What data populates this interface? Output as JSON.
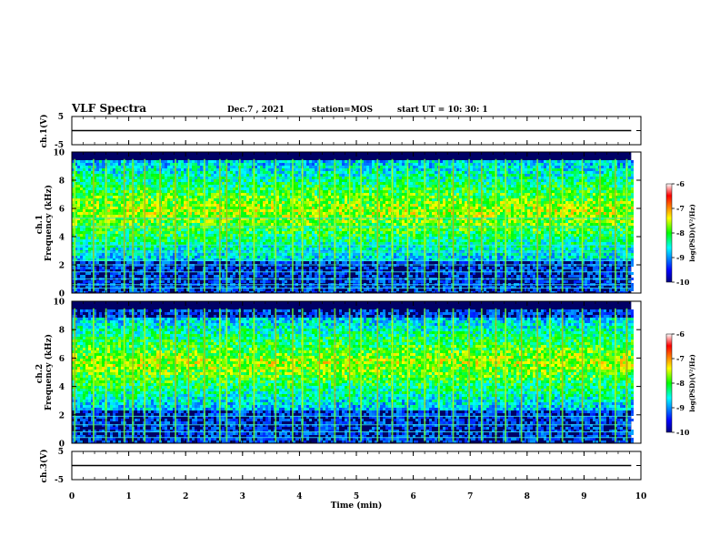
{
  "header": {
    "title": "VLF Spectra",
    "date": "Dec.7 , 2021",
    "station": "station=MOS",
    "start": "start  UT =   10: 30: 1"
  },
  "chart_data": [
    {
      "type": "line",
      "ylabel": "ch.1(V)",
      "ylim": [
        -5,
        5
      ],
      "yticks": [
        "5",
        "-5"
      ],
      "xlim": [
        0,
        10
      ],
      "series": [
        {
          "x": [
            0,
            9.83
          ],
          "y": [
            0,
            0
          ]
        }
      ]
    },
    {
      "type": "heatmap",
      "ylabel": "ch.1\nFrequency (kHz)",
      "ylim": [
        0,
        10
      ],
      "yticks": [
        "0",
        "2",
        "4",
        "6",
        "8",
        "10"
      ],
      "xlim": [
        0,
        10
      ],
      "data_extent_min": 9.83,
      "colorbar": {
        "label": "log(PSD)(V²/Hz)",
        "range": [
          -10,
          -6
        ],
        "ticks": [
          "-6",
          "-7",
          "-8",
          "-9",
          "-10"
        ]
      },
      "features": {
        "band_khz": [
          2.3,
          9.5
        ],
        "spectral_lines_khz": [
          0.35,
          0.6,
          1.0,
          1.5,
          2.0,
          2.3,
          2.9,
          3.4,
          4.7,
          5.3
        ],
        "bursts_min": [
          0.05,
          0.38,
          0.6,
          0.92,
          1.07,
          1.28,
          1.55,
          1.82,
          2.05,
          2.33,
          2.6,
          2.72,
          2.95,
          3.2,
          3.58,
          3.88,
          4.05,
          4.35,
          4.62,
          4.88,
          5.08,
          5.37,
          5.63,
          5.9,
          6.2,
          6.45,
          6.7,
          6.98,
          7.2,
          7.45,
          7.62,
          7.9,
          8.18,
          8.4,
          8.62,
          8.97,
          9.28,
          9.55,
          9.75
        ]
      }
    },
    {
      "type": "heatmap",
      "ylabel": "ch.2\nFrequency (kHz)",
      "ylim": [
        0,
        10
      ],
      "yticks": [
        "0",
        "2",
        "4",
        "6",
        "8",
        "10"
      ],
      "xlim": [
        0,
        10
      ],
      "data_extent_min": 9.83,
      "colorbar": {
        "label": "log(PSD)(V²/Hz)",
        "range": [
          -10,
          -6
        ],
        "ticks": [
          "-6",
          "-7",
          "-8",
          "-9",
          "-10"
        ]
      },
      "features": {
        "band_khz": [
          2.5,
          9.0
        ],
        "spectral_lines_khz": [
          0.4,
          0.8,
          1.3,
          1.9
        ],
        "bursts_min": [
          0.05,
          0.38,
          0.6,
          0.92,
          1.07,
          1.28,
          1.55,
          1.82,
          2.05,
          2.33,
          2.6,
          2.72,
          2.95,
          3.2,
          3.58,
          3.88,
          4.05,
          4.35,
          4.62,
          4.88,
          5.08,
          5.37,
          5.63,
          5.9,
          6.2,
          6.45,
          6.7,
          6.98,
          7.2,
          7.45,
          7.62,
          7.9,
          8.18,
          8.4,
          8.62,
          8.97,
          9.28,
          9.55,
          9.75
        ]
      }
    },
    {
      "type": "line",
      "ylabel": "ch.3(V)",
      "ylim": [
        -5,
        5
      ],
      "yticks": [
        "5",
        "-5"
      ],
      "xlim": [
        0,
        10
      ],
      "xlabel": "Time (min)",
      "xticks": [
        "0",
        "1",
        "2",
        "3",
        "4",
        "5",
        "6",
        "7",
        "8",
        "9",
        "10"
      ],
      "series": [
        {
          "x": [
            0,
            9.83
          ],
          "y": [
            0,
            0
          ]
        }
      ]
    }
  ]
}
